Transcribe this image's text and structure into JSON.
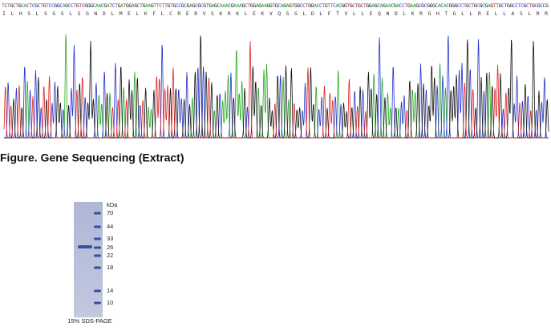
{
  "sequence": {
    "dna": "TCTGCTGCACTCGCTGTCCGGCAGCCTGTCGGGCAACGATCTGATGGAGCTGAAGTTCTTGTGCCGCGAGCGCGTGAGCAAACGAAAGCTGGAGAAGGTGCAGAGTGGCCTGGACCTGTTCACGGTGCTGCTGGAGCAGAACGACCTGAAGCGCGGGCACACGGGCCTGCTGCGCGAGTTGCTGGCCTCGCTGCGCCG",
    "protein": "I L H S L S G S L S G N D L M E L K F L C R E R V S K R K L E K V Q S G L D L F T V L L E Q N D L K R G H T G L L R E L L A S L R R"
  },
  "figure_caption": "Figure. Gene Sequencing (Extract)",
  "gel": {
    "unit": "kDa",
    "markers": [
      70,
      44,
      33,
      26,
      22,
      18,
      14,
      10
    ],
    "caption": "15% SDS-PAGE"
  }
}
